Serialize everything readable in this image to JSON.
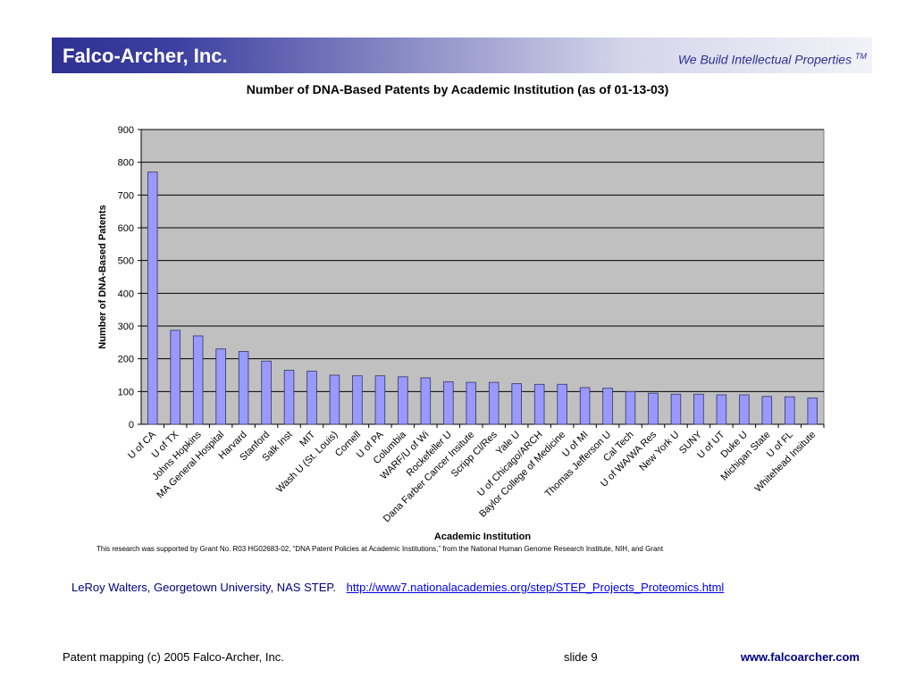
{
  "header": {
    "company": "Falco-Archer, Inc.",
    "tagline": "We Build Intellectual Properties",
    "tm": "TM"
  },
  "footnote": "This research was supported by Grant No. R03 HG02683-02, “DNA Patent Policies at Academic Institutions,” from the National Human Genome Research Institute, NIH, and Grant",
  "citation": {
    "author": "LeRoy Walters, Georgetown University, NAS STEP.",
    "link": "http://www7.nationalacademies.org/step/STEP_Projects_Proteomics.html"
  },
  "footer": {
    "left": "Patent mapping   (c) 2005 Falco-Archer, Inc.",
    "slide": "slide 9",
    "url": "www.falcoarcher.com"
  },
  "colors": {
    "header_dark": "#2e3192",
    "bar_fill": "#9999ff",
    "bar_stroke": "#333366",
    "plot_bg": "#c0c0c0",
    "link": "#0000ee",
    "author": "#000080"
  },
  "chart_data": {
    "type": "bar",
    "title": "Number of DNA-Based Patents by Academic Institution (as of 01-13-03)",
    "xlabel": "Academic Institution",
    "ylabel": "Number of DNA-Based Patents",
    "ylim": [
      0,
      900
    ],
    "yticks": [
      0,
      100,
      200,
      300,
      400,
      500,
      600,
      700,
      800,
      900
    ],
    "grid": true,
    "categories": [
      "U of CA",
      "U of TX",
      "Johns Hopkins",
      "MA General Hospital",
      "Harvard",
      "Stanford",
      "Salk Inst",
      "MIT",
      "Wash U (St. Louis)",
      "Cornell",
      "U of PA",
      "Columbia",
      "WARF/U of Wi",
      "Rockefeller U",
      "Dana Farber Cancer Insitute",
      "Scripp Cl/Res",
      "Yale U",
      "U of Chicago/ARCH",
      "Baylor College of Medicine",
      "U of MI",
      "Thomas Jefferson U",
      "Cal Tech",
      "U of WA/WA Res",
      "New York U",
      "SUNY",
      "U of UT",
      "Duke U",
      "Michigan State",
      "U of FL",
      "Whitehead Insitute"
    ],
    "values": [
      770,
      287,
      270,
      230,
      222,
      193,
      165,
      162,
      150,
      148,
      148,
      145,
      142,
      130,
      128,
      128,
      124,
      122,
      122,
      112,
      110,
      100,
      95,
      92,
      92,
      90,
      90,
      85,
      84,
      80
    ]
  }
}
